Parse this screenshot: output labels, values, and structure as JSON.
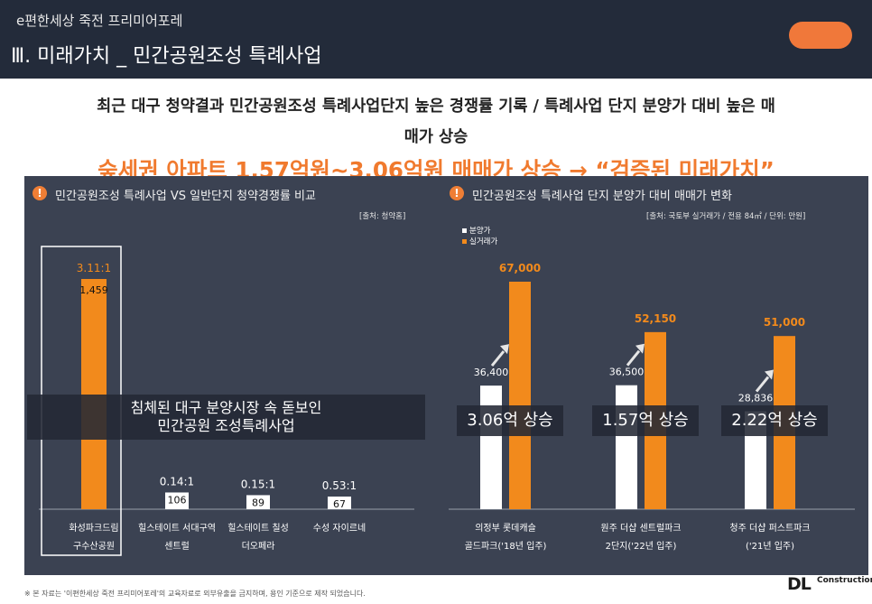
{
  "header": {
    "subtitle": "e편한세상 죽전 프리미어포레",
    "title": "Ⅲ. 미래가치 _ 민간공원조성 특례사업"
  },
  "headline": {
    "line1": "최근 대구 청약결과 민간공원조성 특례사업단지 높은 경쟁률 기록 / 특례사업 단지 분양가 대비 높은 매",
    "line2": "매가 상승"
  },
  "highlight": "숲세권 아파트 1.57억원~3.06억원 매매가 상승 → “검증된 미래가치”",
  "colors": {
    "accent": "#f28a1c",
    "panel": "#3b4252",
    "header": "#232b3a"
  },
  "left_panel": {
    "title": "민간공원조성 특례사업 VS 일반단지 청약경쟁률 비교",
    "source": "[출처: 청약홈]",
    "banner_line1": "침체된 대구 분양시장 속 돋보인",
    "banner_line2": "민간공원 조성특례사업",
    "icon": "exclamation-icon"
  },
  "right_panel": {
    "title": "민간공원조성 특례사업 단지 분양가 대비 매매가 변화",
    "source": "[출처: 국토부 실거래가 / 전용 84㎡ / 단위: 만원]",
    "icon": "exclamation-icon"
  },
  "chart_data": [
    {
      "type": "bar",
      "categories": [
        [
          "화성파크드림",
          "구수산공원"
        ],
        [
          "힐스테이트 서대구역",
          "센트럴"
        ],
        [
          "힐스테이트 칠성",
          "더오페라"
        ],
        [
          "수성 자이르네"
        ]
      ],
      "ratio_labels": [
        "3.11:1",
        "0.14:1",
        "0.15:1",
        "0.53:1"
      ],
      "values": [
        1459,
        106,
        89,
        67
      ],
      "value_labels": [
        "1,459",
        "106",
        "89",
        "67"
      ],
      "ylim": [
        0,
        1600
      ]
    },
    {
      "type": "bar",
      "categories": [
        [
          "의정부 롯데캐슬",
          "골드파크('18년 입주)"
        ],
        [
          "원주 더샵 센트럴파크",
          "2단지('22년 입주)"
        ],
        [
          "청주 더샵 퍼스트파크",
          "('21년 입주)"
        ]
      ],
      "series": [
        {
          "name": "분양가",
          "color": "#ffffff",
          "values": [
            36400,
            36500,
            28836
          ],
          "labels": [
            "36,400",
            "36,500",
            "28,836"
          ]
        },
        {
          "name": "실거래가",
          "color": "#f28a1c",
          "values": [
            67000,
            52150,
            51000
          ],
          "labels": [
            "67,000",
            "52,150",
            "51,000"
          ]
        }
      ],
      "increase_labels": [
        "3.06억 상승",
        "1.57억 상승",
        "2.22억 상승"
      ],
      "ylim": [
        0,
        75000
      ]
    }
  ],
  "footnote": "※ 본 자료는 '이편한세상 죽전 프리미어포레'의 교육자료로 외부유출을 금지하며, 용인 기준으로 제작 되었습니다.",
  "logo": {
    "mark": "DL",
    "text": "Construction"
  }
}
